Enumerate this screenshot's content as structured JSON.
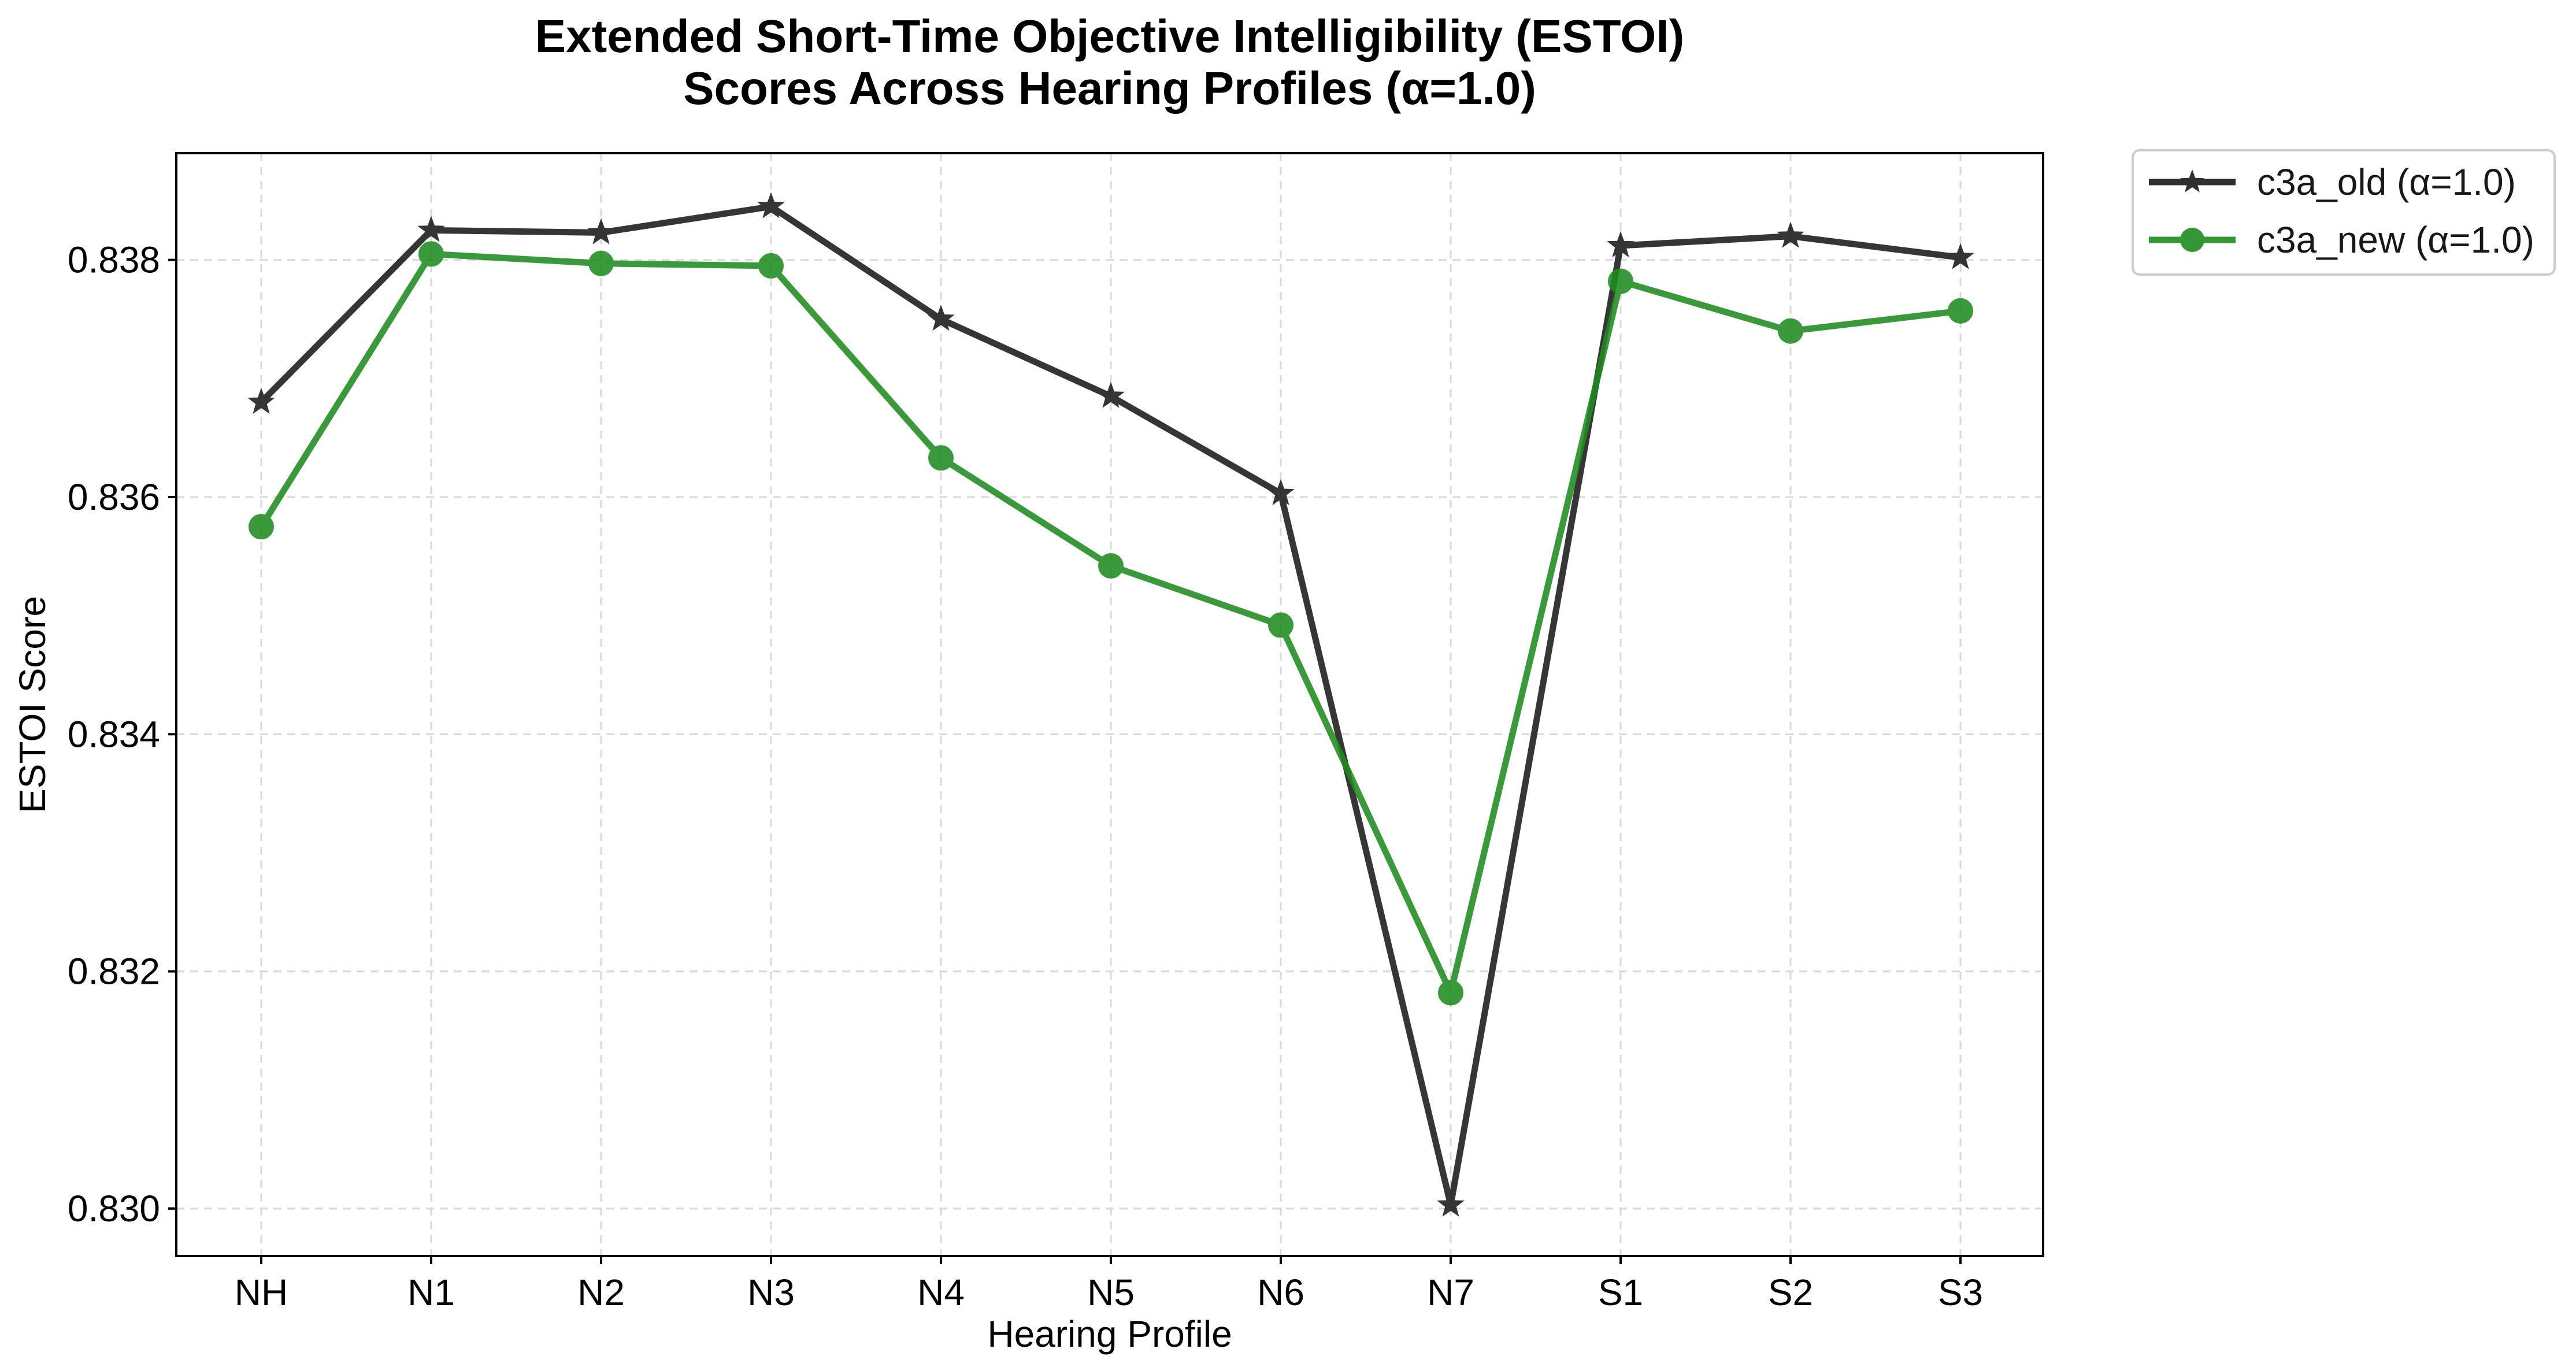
{
  "chart_data": {
    "type": "line",
    "title_line1": "Extended Short-Time Objective Intelligibility (ESTOI)",
    "title_line2": "Scores Across Hearing Profiles (α=1.0)",
    "xlabel": "Hearing Profile",
    "ylabel": "ESTOI Score",
    "categories": [
      "NH",
      "N1",
      "N2",
      "N3",
      "N4",
      "N5",
      "N6",
      "N7",
      "S1",
      "S2",
      "S3"
    ],
    "ylim": [
      0.8296,
      0.8389
    ],
    "yticks": [
      0.83,
      0.832,
      0.834,
      0.836,
      0.838
    ],
    "ytick_labels": [
      "0.830",
      "0.832",
      "0.834",
      "0.836",
      "0.838"
    ],
    "grid": true,
    "legend_position": "outside-top-right",
    "series": [
      {
        "name": "c3a_old (α=1.0)",
        "color": "#1a1a1a",
        "marker": "star",
        "values": [
          0.8368,
          0.83825,
          0.83823,
          0.83845,
          0.8375,
          0.83685,
          0.83603,
          0.83003,
          0.83812,
          0.8382,
          0.83802
        ]
      },
      {
        "name": "c3a_new (α=1.0)",
        "color": "#1f8c1f",
        "marker": "circle",
        "values": [
          0.83575,
          0.83805,
          0.83797,
          0.83795,
          0.83633,
          0.83542,
          0.83492,
          0.83182,
          0.83782,
          0.8374,
          0.83757
        ]
      }
    ]
  }
}
